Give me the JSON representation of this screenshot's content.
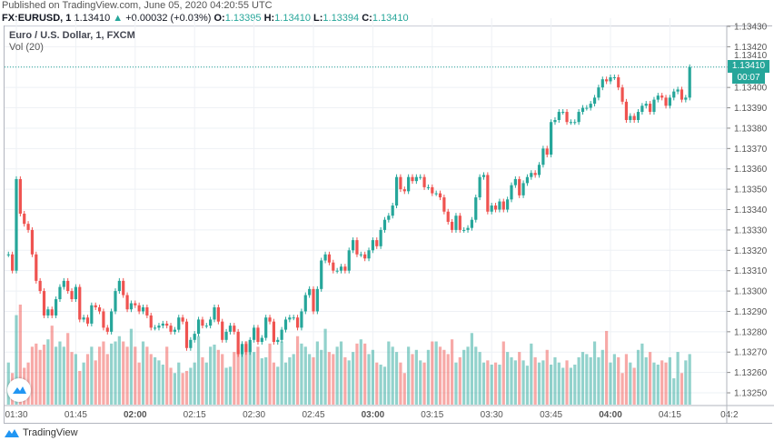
{
  "header": {
    "published": "Published on TradingView.com, June 05, 2020 04:20:55 UTC",
    "symbol": "FX:EURUSD, 1",
    "last": "1.13410",
    "change": "+0.00032 (+0.03%)",
    "o_label": "O:",
    "o": "1.13395",
    "h_label": "H:",
    "h": "1.13410",
    "l_label": "L:",
    "l": "1.13394",
    "c_label": "C:",
    "c": "1.13410",
    "direction_icon": "triangle-up-icon"
  },
  "legend": {
    "title": "Euro / U.S. Dollar, 1, FXCM",
    "volume": "Vol (20)"
  },
  "price_axis": {
    "last_price": "1.13410",
    "countdown": "00:07"
  },
  "footer": {
    "brand": "TradingView"
  },
  "colors": {
    "up": "#26a69a",
    "down": "#ef5350",
    "grid": "#eef1f5"
  },
  "chart_data": {
    "type": "candlestick",
    "y_ticks": [
      "1.13250",
      "1.13260",
      "1.13270",
      "1.13280",
      "1.13290",
      "1.13300",
      "1.13310",
      "1.13320",
      "1.13330",
      "1.13340",
      "1.13350",
      "1.13360",
      "1.13370",
      "1.13380",
      "1.13390",
      "1.13400",
      "1.13410",
      "1.13420",
      "1.13430"
    ],
    "x_ticks": [
      {
        "label": "01:30",
        "bold": false
      },
      {
        "label": "01:45",
        "bold": false
      },
      {
        "label": "02:00",
        "bold": true
      },
      {
        "label": "02:15",
        "bold": false
      },
      {
        "label": "02:30",
        "bold": false
      },
      {
        "label": "02:45",
        "bold": false
      },
      {
        "label": "03:00",
        "bold": true
      },
      {
        "label": "03:15",
        "bold": false
      },
      {
        "label": "03:30",
        "bold": false
      },
      {
        "label": "03:45",
        "bold": false
      },
      {
        "label": "04:00",
        "bold": true
      },
      {
        "label": "04:15",
        "bold": false
      },
      {
        "label": "04:2",
        "bold": false
      }
    ],
    "first_bar_time": "01:28",
    "close": [
      1.13318,
      1.1331,
      1.13355,
      1.13338,
      1.13333,
      1.1333,
      1.13318,
      1.13305,
      1.133,
      1.13288,
      1.13291,
      1.13288,
      1.13296,
      1.13302,
      1.13305,
      1.133,
      1.13296,
      1.13302,
      1.13286,
      1.13287,
      1.13284,
      1.13293,
      1.13292,
      1.1329,
      1.13282,
      1.1328,
      1.1329,
      1.133,
      1.13305,
      1.13298,
      1.13291,
      1.13294,
      1.13293,
      1.1329,
      1.13292,
      1.13288,
      1.13282,
      1.13282,
      1.13283,
      1.13284,
      1.13283,
      1.1328,
      1.13281,
      1.13287,
      1.13285,
      1.13272,
      1.13276,
      1.13279,
      1.13286,
      1.13283,
      1.13283,
      1.13286,
      1.13292,
      1.13285,
      1.13276,
      1.1328,
      1.13283,
      1.1328,
      1.13269,
      1.13274,
      1.1327,
      1.13276,
      1.13282,
      1.13275,
      1.13277,
      1.13287,
      1.13285,
      1.13275,
      1.13276,
      1.13281,
      1.13286,
      1.13287,
      1.13287,
      1.13282,
      1.1329,
      1.13298,
      1.13301,
      1.1329,
      1.13301,
      1.13315,
      1.13318,
      1.13314,
      1.1331,
      1.1331,
      1.13312,
      1.1331,
      1.1332,
      1.13325,
      1.13318,
      1.13318,
      1.13316,
      1.1332,
      1.13325,
      1.13322,
      1.1333,
      1.13335,
      1.13337,
      1.13342,
      1.13356,
      1.1335,
      1.13349,
      1.13356,
      1.13354,
      1.13356,
      1.13356,
      1.13351,
      1.13351,
      1.13348,
      1.13348,
      1.13346,
      1.13339,
      1.13334,
      1.1333,
      1.13337,
      1.1333,
      1.1333,
      1.13331,
      1.13335,
      1.13346,
      1.13356,
      1.13357,
      1.13339,
      1.13342,
      1.1334,
      1.13344,
      1.1334,
      1.13345,
      1.13352,
      1.13355,
      1.13347,
      1.13353,
      1.13356,
      1.13358,
      1.13357,
      1.13362,
      1.1337,
      1.13367,
      1.13383,
      1.13384,
      1.13388,
      1.13388,
      1.13383,
      1.13383,
      1.13383,
      1.13388,
      1.1339,
      1.1339,
      1.13392,
      1.13395,
      1.134,
      1.13404,
      1.13403,
      1.13405,
      1.13405,
      1.134,
      1.13393,
      1.13384,
      1.13386,
      1.13384,
      1.13388,
      1.13391,
      1.13392,
      1.13388,
      1.13394,
      1.13396,
      1.13395,
      1.13391,
      1.13395,
      1.13398,
      1.13399,
      1.13394,
      1.13395,
      1.1341
    ],
    "volume": [
      40,
      30,
      85,
      95,
      35,
      40,
      55,
      58,
      52,
      57,
      62,
      75,
      55,
      60,
      55,
      68,
      50,
      48,
      32,
      40,
      48,
      55,
      42,
      55,
      60,
      48,
      58,
      60,
      65,
      60,
      55,
      72,
      55,
      40,
      60,
      55,
      48,
      45,
      42,
      38,
      55,
      35,
      30,
      40,
      30,
      32,
      35,
      40,
      65,
      45,
      40,
      55,
      57,
      52,
      48,
      35,
      36,
      50,
      52,
      55,
      60,
      58,
      50,
      55,
      44,
      45,
      58,
      40,
      36,
      60,
      40,
      45,
      48,
      65,
      58,
      55,
      48,
      45,
      60,
      52,
      72,
      50,
      48,
      55,
      60,
      45,
      42,
      50,
      58,
      62,
      58,
      48,
      52,
      40,
      38,
      36,
      60,
      55,
      50,
      40,
      30,
      55,
      48,
      52,
      42,
      40,
      52,
      60,
      60,
      55,
      52,
      48,
      62,
      40,
      45,
      52,
      55,
      68,
      55,
      50,
      40,
      42,
      38,
      40,
      38,
      60,
      50,
      45,
      42,
      50,
      42,
      37,
      58,
      45,
      40,
      42,
      52,
      38,
      45,
      40,
      35,
      42,
      35,
      38,
      45,
      50,
      48,
      45,
      60,
      45,
      52,
      70,
      40,
      48,
      45,
      30,
      48,
      40,
      35,
      52,
      58,
      45,
      50,
      40,
      38,
      42,
      40,
      45,
      25,
      50,
      30,
      42,
      48
    ]
  }
}
